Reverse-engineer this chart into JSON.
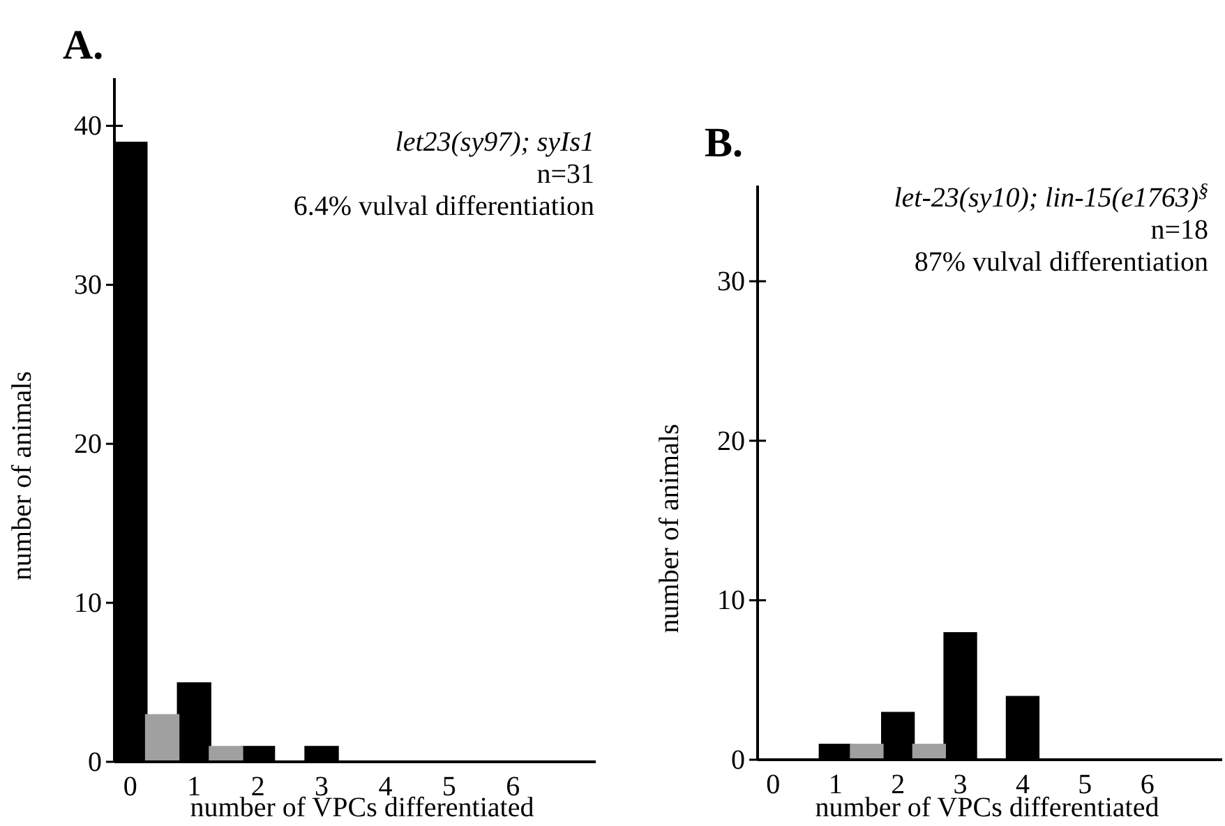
{
  "chart_data": [
    {
      "type": "bar",
      "title": "A.",
      "xlabel": "number of VPCs differentiated",
      "ylabel": "number of animals",
      "xlim": [
        -0.25,
        7.3
      ],
      "xticks": [
        0,
        1,
        2,
        3,
        4,
        5,
        6
      ],
      "ylim": [
        0,
        43
      ],
      "yticks": [
        0,
        10,
        20,
        30,
        40
      ],
      "annotations": [
        "let23(sy97); syIs1",
        "n=31",
        "6.4% vulval differentiation"
      ],
      "series": [
        {
          "color": "#000000",
          "x": [
            0,
            1,
            2,
            3
          ],
          "values": [
            39,
            5,
            1,
            1
          ]
        },
        {
          "color": "#a0a0a0",
          "x": [
            0.5,
            1.5
          ],
          "values": [
            3,
            1
          ]
        }
      ]
    },
    {
      "type": "bar",
      "title": "B.",
      "xlabel": "number of VPCs differentiated",
      "ylabel": "number of animals",
      "xlim": [
        -0.25,
        7.2
      ],
      "xticks": [
        0,
        1,
        2,
        3,
        4,
        5,
        6
      ],
      "ylim": [
        0,
        36
      ],
      "yticks": [
        0,
        10,
        20,
        30
      ],
      "annotations": [
        "let-23(sy10); lin-15(e1763)$^{§}$",
        "n=18",
        "87% vulval differentiation"
      ],
      "series": [
        {
          "color": "#000000",
          "x": [
            1,
            2,
            3,
            4
          ],
          "values": [
            1,
            3,
            8,
            4
          ]
        },
        {
          "color": "#a0a0a0",
          "x": [
            1.5,
            2.5
          ],
          "values": [
            1,
            1
          ]
        }
      ]
    }
  ]
}
